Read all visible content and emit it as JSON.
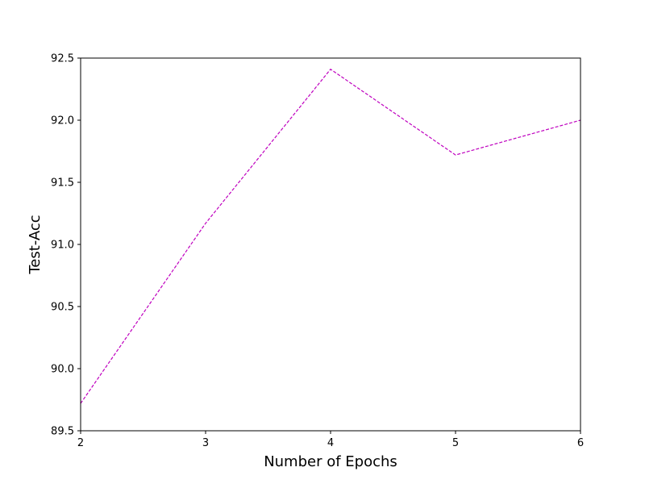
{
  "chart_data": {
    "type": "line",
    "title": "",
    "xlabel": "Number of Epochs",
    "ylabel": "Test-Acc",
    "x": [
      2,
      3,
      4,
      5,
      6
    ],
    "series": [
      {
        "values": [
          89.72,
          91.17,
          92.41,
          91.72,
          92.0
        ],
        "color": "#bf00bf",
        "line_style": "dashed"
      }
    ],
    "xlim": [
      2,
      6
    ],
    "ylim": [
      89.5,
      92.5
    ],
    "xticks": [
      2,
      3,
      4,
      5,
      6
    ],
    "xtick_labels": [
      "2",
      "3",
      "4",
      "5",
      "6"
    ],
    "yticks": [
      89.5,
      90.0,
      90.5,
      91.0,
      91.5,
      92.0,
      92.5
    ],
    "ytick_labels": [
      "89.5",
      "90.0",
      "90.5",
      "91.0",
      "91.5",
      "92.0",
      "92.5"
    ],
    "grid": false,
    "legend": "none"
  }
}
